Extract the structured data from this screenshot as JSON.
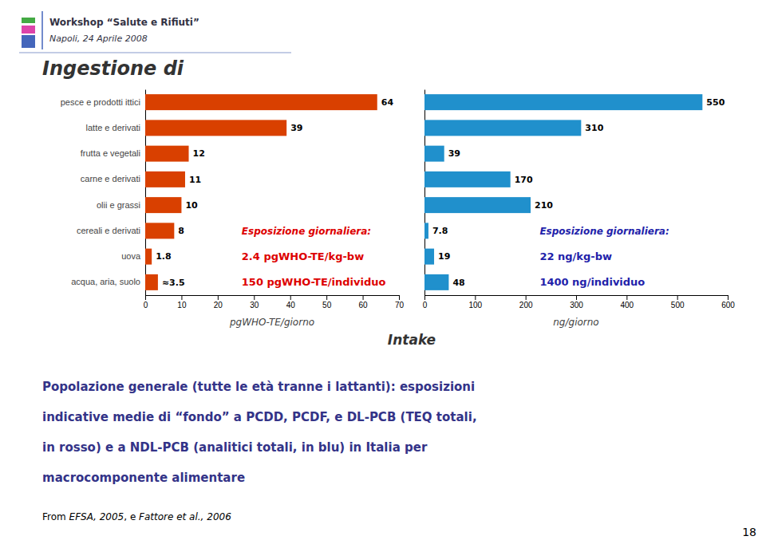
{
  "chart_data": [
    {
      "type": "bar",
      "orientation": "horizontal",
      "title": "Ingestione di",
      "categories": [
        "pesce e prodotti ittici",
        "latte e derivati",
        "frutta e vegetali",
        "carne e derivati",
        "olii e grassi",
        "cereali e derivati",
        "uova",
        "acqua, aria, suolo"
      ],
      "values": [
        64,
        39,
        12,
        11,
        10,
        8,
        1.8,
        3.5
      ],
      "value_labels": [
        "64",
        "39",
        "12",
        "11",
        "10",
        "8",
        "1.8",
        "≈3.5"
      ],
      "data_labels": true,
      "color": "#D94000",
      "xlabel": "pgWHO-TE/giorno",
      "xlim": [
        0,
        70
      ],
      "xticks": [
        0,
        10,
        20,
        30,
        40,
        50,
        60,
        70
      ],
      "annotations": [
        {
          "text": "Esposizione giornaliera:",
          "color": "#DD0000"
        },
        {
          "text": "2.4 pgWHO-TE/kg-bw",
          "color": "#DD0000"
        },
        {
          "text": "150 pgWHO-TE/individuo",
          "color": "#DD0000"
        }
      ]
    },
    {
      "type": "bar",
      "orientation": "horizontal",
      "categories": [
        "pesce e prodotti ittici",
        "latte e derivati",
        "frutta e vegetali",
        "carne e derivati",
        "olii e grassi",
        "cereali e derivati",
        "uova",
        "acqua, aria, suolo"
      ],
      "values": [
        550,
        310,
        39,
        170,
        210,
        7.8,
        19,
        48
      ],
      "data_labels": true,
      "tick_labels": "x",
      "color": "#2090CC",
      "xlabel": "ng/giorno",
      "xlim": [
        0,
        600
      ],
      "xticks": [
        0,
        100,
        200,
        300,
        400,
        500,
        600
      ],
      "annotations": [
        {
          "text": "Esposizione giornaliera:",
          "color": "#2222AA"
        },
        {
          "text": "22 ng/kg-bw",
          "color": "#2222AA"
        },
        {
          "text": "1400 ng/individuo",
          "color": "#2222AA"
        }
      ]
    }
  ],
  "page": {
    "header": [
      "Workshop “Salute e Rifiuti”",
      "Napoli, 24 Aprile 2008"
    ],
    "label": "Intake",
    "caption": [
      "Popolazione generale (tutte le età tranne i lattanti):  esposizioni",
      "indicative medie di “fondo” a PCDD, PCDF, e DL-PCB (TEQ totali,",
      "in rosso) e a NDL-PCB (analitici totali, in blu) in Italia per",
      "macrocomponente alimentare"
    ],
    "footer": [
      "From ",
      "EFSA, 2005",
      ", e ",
      "Fattore et al., 2006"
    ],
    "page_number": "18"
  }
}
